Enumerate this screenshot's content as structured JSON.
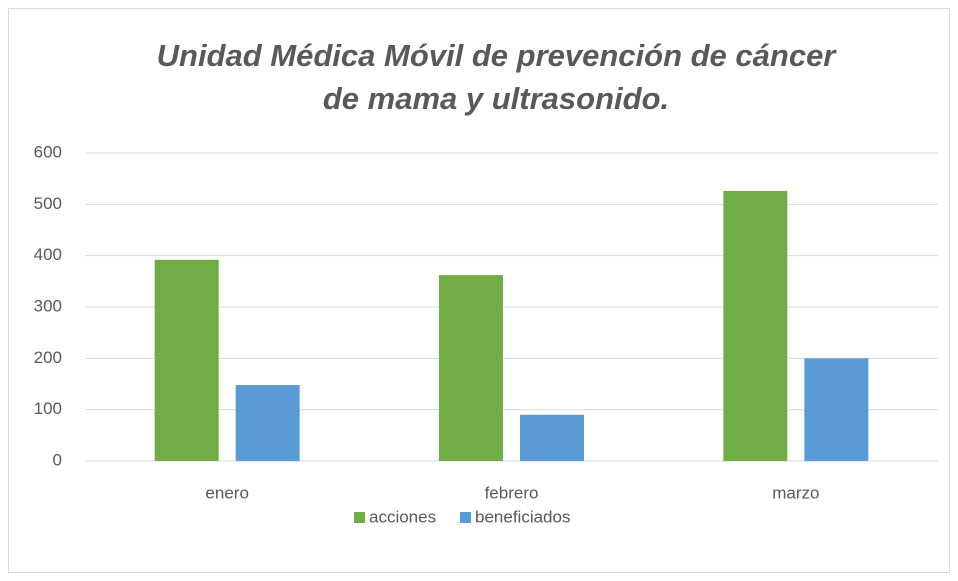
{
  "chart_data": {
    "type": "bar",
    "title": [
      "Unidad Médica Móvil de prevención de cáncer",
      "de mama y ultrasonido."
    ],
    "categories": [
      "enero",
      "febrero",
      "marzo"
    ],
    "series": [
      {
        "name": "acciones",
        "color": "#70ad47",
        "values": [
          392,
          362,
          526
        ]
      },
      {
        "name": "beneficiados",
        "color": "#5b9bd5",
        "values": [
          148,
          90,
          200
        ]
      }
    ],
    "ylim": [
      0,
      600
    ],
    "yticks": [
      0,
      100,
      200,
      300,
      400,
      500,
      600
    ],
    "grid": true,
    "legend": "bottom"
  }
}
